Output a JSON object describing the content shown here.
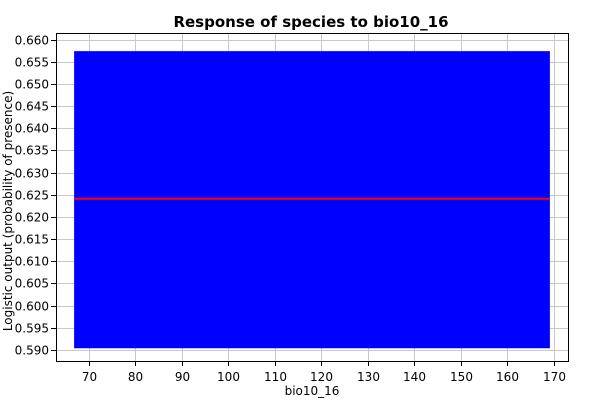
{
  "chart_data": {
    "type": "area",
    "title": "Response of species to bio10_16",
    "xlabel": "bio10_16",
    "ylabel": "Logistic output (probability of presence)",
    "xlim": [
      63,
      173
    ],
    "ylim": [
      0.5875,
      0.6615
    ],
    "x_ticks": [
      70,
      80,
      90,
      100,
      110,
      120,
      130,
      140,
      150,
      160,
      170
    ],
    "x_tick_labels": [
      "70",
      "80",
      "90",
      "100",
      "110",
      "120",
      "130",
      "140",
      "150",
      "160",
      "170"
    ],
    "y_ticks": [
      0.59,
      0.595,
      0.6,
      0.605,
      0.61,
      0.615,
      0.62,
      0.625,
      0.63,
      0.635,
      0.64,
      0.645,
      0.65,
      0.655,
      0.66
    ],
    "y_tick_labels": [
      "0.590",
      "0.595",
      "0.600",
      "0.605",
      "0.610",
      "0.615",
      "0.620",
      "0.625",
      "0.630",
      "0.635",
      "0.640",
      "0.645",
      "0.650",
      "0.655",
      "0.660"
    ],
    "grid": true,
    "series": [
      {
        "kind": "band",
        "color": "#0000ff",
        "x": [
          67,
          169
        ],
        "lower": [
          0.5905,
          0.5905
        ],
        "upper": [
          0.6573,
          0.6573
        ]
      },
      {
        "kind": "line",
        "color": "#ff0000",
        "x": [
          67,
          169
        ],
        "y": [
          0.6241,
          0.6241
        ]
      }
    ]
  }
}
